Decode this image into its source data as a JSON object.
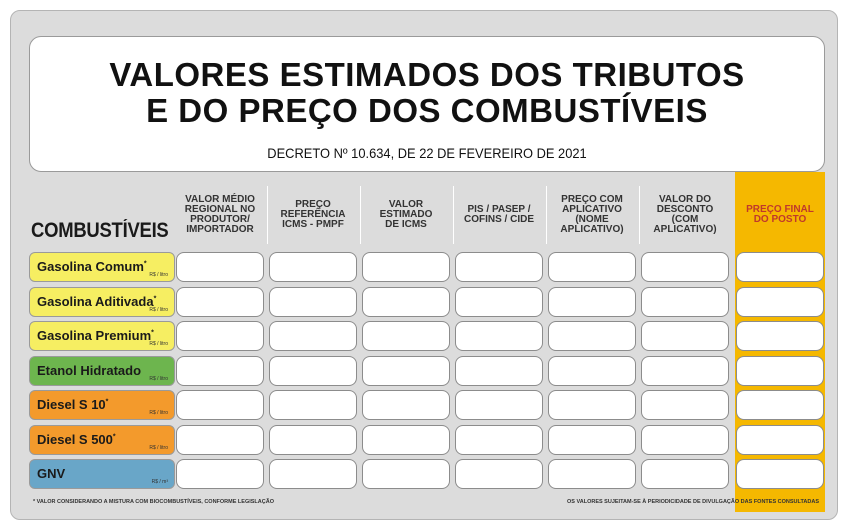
{
  "title": {
    "line1": "VALORES ESTIMADOS DOS TRIBUTOS",
    "line2": "E DO PREÇO DOS COMBUSTÍVEIS"
  },
  "decree": "DECRETO Nº 10.634, DE 22 DE FEVEREIRO DE 2021",
  "table": {
    "row_heading": "COMBUSTÍVEIS",
    "columns": [
      "VALOR MÉDIO\nREGIONAL NO\nPRODUTOR/\nIMPORTADOR",
      "PREÇO\nREFERÊNCIA\nICMS - PMPF",
      "VALOR\nESTIMADO\nDE ICMS",
      "PIS / PASEP /\nCOFINS / CIDE",
      "PREÇO COM\nAPLICATIVO\n(NOME\nAPLICATIVO)",
      "VALOR DO\nDESCONTO\n(COM\nAPLICATIVO)",
      "PREÇO FINAL\nDO POSTO"
    ],
    "highlight_color": "#f5b800",
    "rows": [
      {
        "name": "Gasolina Comum",
        "mark": "*",
        "unit": "R$ / litro",
        "color": "#f6ee62"
      },
      {
        "name": "Gasolina Aditivada",
        "mark": "*",
        "unit": "R$ / litro",
        "color": "#f6ee62"
      },
      {
        "name": "Gasolina Premium",
        "mark": "*",
        "unit": "R$ / litro",
        "color": "#f6ee62"
      },
      {
        "name": "Etanol Hidratado",
        "mark": "",
        "unit": "R$ / litro",
        "color": "#6db54e"
      },
      {
        "name": "Diesel S 10",
        "mark": "*",
        "unit": "R$ / litro",
        "color": "#f39a2c"
      },
      {
        "name": "Diesel S 500",
        "mark": "*",
        "unit": "R$ / litro",
        "color": "#f39a2c"
      },
      {
        "name": "GNV",
        "mark": "",
        "unit": "R$ / m³",
        "color": "#69a6c8"
      }
    ]
  },
  "footer": {
    "left": "* VALOR CONSIDERANDO A MISTURA COM BIOCOMBUSTÍVEIS, CONFORME LEGISLAÇÃO",
    "right": "OS VALORES SUJEITAM-SE À PERIODICIDADE DE DIVULGAÇÃO DAS FONTES CONSULTADAS"
  }
}
